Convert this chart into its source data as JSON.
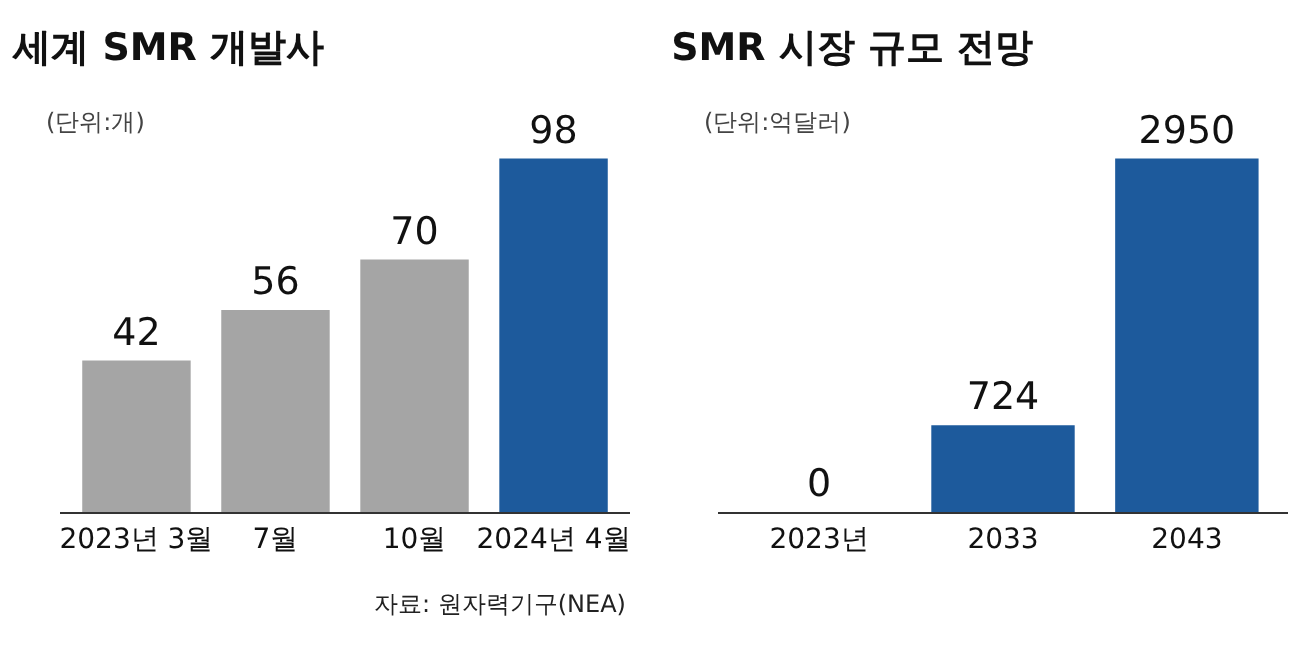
{
  "chart_data": [
    {
      "type": "bar",
      "title": "세계 SMR 개발사",
      "subtitle": "(단위:개)",
      "categories": [
        "2023년 3월",
        "7월",
        "10월",
        "2024년 4월"
      ],
      "values": [
        42,
        56,
        70,
        98
      ],
      "colors": [
        "#a5a5a5",
        "#a5a5a5",
        "#a5a5a5",
        "#1d5a9c"
      ],
      "data_labels": true,
      "tick_labels": "x",
      "annotations": [
        "자료: 원자력기구(NEA)"
      ]
    },
    {
      "type": "bar",
      "title": "SMR 시장 규모 전망",
      "subtitle": "(단위:억달러)",
      "categories": [
        "2023년",
        "2033",
        "2043"
      ],
      "values": [
        0,
        724,
        2950
      ],
      "colors": [
        "#a5a5a5",
        "#1d5a9c",
        "#1d5a9c"
      ],
      "data_labels": true,
      "tick_labels": "x"
    }
  ]
}
